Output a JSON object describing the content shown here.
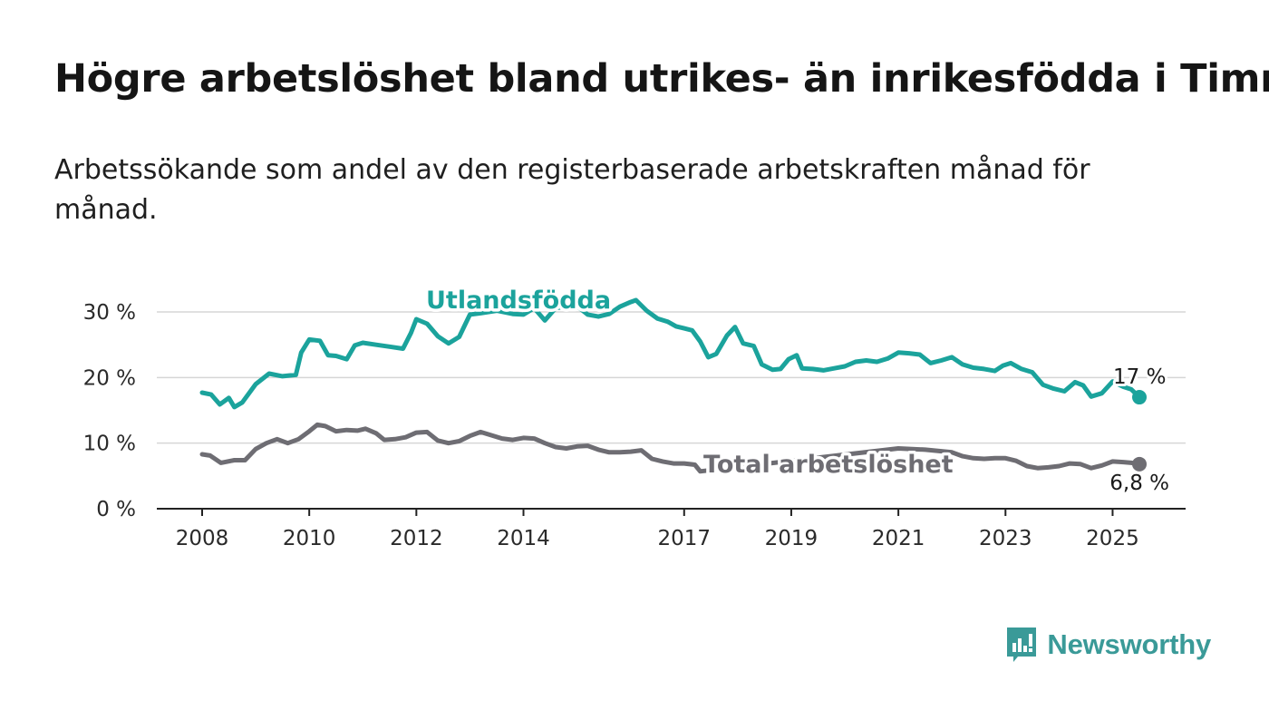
{
  "header": {
    "title": "Högre arbetslöshet bland utrikes- än inrikesfödda i Timrå",
    "subtitle": "Arbetssökande som andel av den registerbaserade arbetskraften månad för månad."
  },
  "brand": {
    "name": "Newsworthy",
    "logo_icon": "newsworthy-logo-icon",
    "color": "#3a9a98"
  },
  "chart_data": {
    "type": "line",
    "x_range": [
      2008.0,
      2025.5
    ],
    "ylim": [
      0,
      30
    ],
    "y_ticks": [
      0,
      10,
      20,
      30
    ],
    "y_tick_labels": [
      "0 %",
      "10 %",
      "20 %",
      "30 %"
    ],
    "x_ticks": [
      2008,
      2010,
      2012,
      2014,
      2017,
      2019,
      2021,
      2023,
      2025
    ],
    "x_tick_labels": [
      "2008",
      "2010",
      "2012",
      "2014",
      "2017",
      "2019",
      "2021",
      "2023",
      "2025"
    ],
    "grid": true,
    "series": [
      {
        "name": "Utlandsfödda",
        "color": "#1ba39c",
        "end_label": "17 %",
        "points": [
          [
            2008.0,
            17.7
          ],
          [
            2008.17,
            17.4
          ],
          [
            2008.33,
            15.9
          ],
          [
            2008.5,
            16.9
          ],
          [
            2008.6,
            15.5
          ],
          [
            2008.75,
            16.2
          ],
          [
            2009.0,
            19.0
          ],
          [
            2009.25,
            20.6
          ],
          [
            2009.5,
            20.2
          ],
          [
            2009.75,
            20.4
          ],
          [
            2009.85,
            23.8
          ],
          [
            2010.0,
            25.8
          ],
          [
            2010.2,
            25.6
          ],
          [
            2010.35,
            23.4
          ],
          [
            2010.5,
            23.3
          ],
          [
            2010.7,
            22.8
          ],
          [
            2010.85,
            24.9
          ],
          [
            2011.0,
            25.3
          ],
          [
            2011.25,
            25.0
          ],
          [
            2011.5,
            24.7
          ],
          [
            2011.75,
            24.4
          ],
          [
            2011.9,
            26.8
          ],
          [
            2012.0,
            28.9
          ],
          [
            2012.2,
            28.2
          ],
          [
            2012.4,
            26.3
          ],
          [
            2012.6,
            25.2
          ],
          [
            2012.8,
            26.2
          ],
          [
            2013.0,
            29.6
          ],
          [
            2013.2,
            29.8
          ],
          [
            2013.5,
            30.2
          ],
          [
            2013.8,
            29.7
          ],
          [
            2014.0,
            29.6
          ],
          [
            2014.2,
            30.6
          ],
          [
            2014.4,
            28.7
          ],
          [
            2014.6,
            30.6
          ],
          [
            2014.8,
            30.8
          ],
          [
            2015.0,
            30.9
          ],
          [
            2015.2,
            29.6
          ],
          [
            2015.4,
            29.3
          ],
          [
            2015.6,
            29.7
          ],
          [
            2015.8,
            30.8
          ],
          [
            2016.0,
            31.5
          ],
          [
            2016.1,
            31.8
          ],
          [
            2016.3,
            30.2
          ],
          [
            2016.5,
            29.0
          ],
          [
            2016.7,
            28.5
          ],
          [
            2016.85,
            27.8
          ],
          [
            2017.0,
            27.5
          ],
          [
            2017.15,
            27.2
          ],
          [
            2017.3,
            25.5
          ],
          [
            2017.45,
            23.1
          ],
          [
            2017.6,
            23.6
          ],
          [
            2017.8,
            26.4
          ],
          [
            2017.95,
            27.7
          ],
          [
            2018.1,
            25.2
          ],
          [
            2018.3,
            24.8
          ],
          [
            2018.45,
            22.0
          ],
          [
            2018.65,
            21.2
          ],
          [
            2018.8,
            21.3
          ],
          [
            2018.95,
            22.8
          ],
          [
            2019.1,
            23.4
          ],
          [
            2019.2,
            21.4
          ],
          [
            2019.4,
            21.3
          ],
          [
            2019.6,
            21.1
          ],
          [
            2019.8,
            21.4
          ],
          [
            2020.0,
            21.7
          ],
          [
            2020.2,
            22.4
          ],
          [
            2020.4,
            22.6
          ],
          [
            2020.6,
            22.4
          ],
          [
            2020.8,
            22.9
          ],
          [
            2021.0,
            23.8
          ],
          [
            2021.2,
            23.7
          ],
          [
            2021.4,
            23.5
          ],
          [
            2021.6,
            22.2
          ],
          [
            2021.8,
            22.6
          ],
          [
            2022.0,
            23.1
          ],
          [
            2022.2,
            22.0
          ],
          [
            2022.4,
            21.5
          ],
          [
            2022.6,
            21.3
          ],
          [
            2022.8,
            21.0
          ],
          [
            2022.95,
            21.8
          ],
          [
            2023.1,
            22.2
          ],
          [
            2023.3,
            21.3
          ],
          [
            2023.5,
            20.8
          ],
          [
            2023.7,
            18.9
          ],
          [
            2023.9,
            18.3
          ],
          [
            2024.1,
            17.9
          ],
          [
            2024.3,
            19.3
          ],
          [
            2024.45,
            18.8
          ],
          [
            2024.6,
            17.1
          ],
          [
            2024.8,
            17.6
          ],
          [
            2025.0,
            19.4
          ],
          [
            2025.2,
            18.6
          ],
          [
            2025.35,
            18.2
          ],
          [
            2025.5,
            17.0
          ]
        ]
      },
      {
        "name": "Total arbetslöshet",
        "color": "#6e6d73",
        "end_label": "6,8 %",
        "points": [
          [
            2008.0,
            8.3
          ],
          [
            2008.15,
            8.1
          ],
          [
            2008.35,
            7.0
          ],
          [
            2008.6,
            7.4
          ],
          [
            2008.8,
            7.4
          ],
          [
            2009.0,
            9.1
          ],
          [
            2009.2,
            10.0
          ],
          [
            2009.4,
            10.6
          ],
          [
            2009.6,
            10.0
          ],
          [
            2009.8,
            10.6
          ],
          [
            2010.0,
            11.8
          ],
          [
            2010.15,
            12.8
          ],
          [
            2010.3,
            12.6
          ],
          [
            2010.5,
            11.8
          ],
          [
            2010.7,
            12.0
          ],
          [
            2010.9,
            11.9
          ],
          [
            2011.05,
            12.2
          ],
          [
            2011.25,
            11.5
          ],
          [
            2011.4,
            10.5
          ],
          [
            2011.6,
            10.6
          ],
          [
            2011.8,
            10.9
          ],
          [
            2012.0,
            11.6
          ],
          [
            2012.2,
            11.7
          ],
          [
            2012.4,
            10.4
          ],
          [
            2012.6,
            10.0
          ],
          [
            2012.8,
            10.3
          ],
          [
            2013.0,
            11.1
          ],
          [
            2013.2,
            11.7
          ],
          [
            2013.4,
            11.2
          ],
          [
            2013.6,
            10.7
          ],
          [
            2013.8,
            10.5
          ],
          [
            2014.0,
            10.8
          ],
          [
            2014.2,
            10.7
          ],
          [
            2014.4,
            10.0
          ],
          [
            2014.6,
            9.4
          ],
          [
            2014.8,
            9.2
          ],
          [
            2015.0,
            9.5
          ],
          [
            2015.2,
            9.6
          ],
          [
            2015.4,
            9.0
          ],
          [
            2015.6,
            8.6
          ],
          [
            2015.8,
            8.6
          ],
          [
            2016.0,
            8.7
          ],
          [
            2016.2,
            8.9
          ],
          [
            2016.4,
            7.6
          ],
          [
            2016.6,
            7.2
          ],
          [
            2016.8,
            6.9
          ],
          [
            2017.0,
            6.9
          ],
          [
            2017.2,
            6.7
          ],
          [
            2017.3,
            5.7
          ],
          [
            2021.0,
            9.2
          ],
          [
            2021.5,
            9.0
          ],
          [
            2022.0,
            8.6
          ],
          [
            2022.2,
            8.0
          ],
          [
            2022.4,
            7.7
          ],
          [
            2022.6,
            7.6
          ],
          [
            2022.8,
            7.7
          ],
          [
            2023.0,
            7.7
          ],
          [
            2023.2,
            7.3
          ],
          [
            2023.4,
            6.5
          ],
          [
            2023.6,
            6.2
          ],
          [
            2023.8,
            6.3
          ],
          [
            2024.0,
            6.5
          ],
          [
            2024.2,
            6.9
          ],
          [
            2024.4,
            6.8
          ],
          [
            2024.6,
            6.2
          ],
          [
            2024.8,
            6.6
          ],
          [
            2025.0,
            7.2
          ],
          [
            2025.2,
            7.1
          ],
          [
            2025.35,
            7.0
          ],
          [
            2025.5,
            6.8
          ]
        ]
      }
    ]
  }
}
